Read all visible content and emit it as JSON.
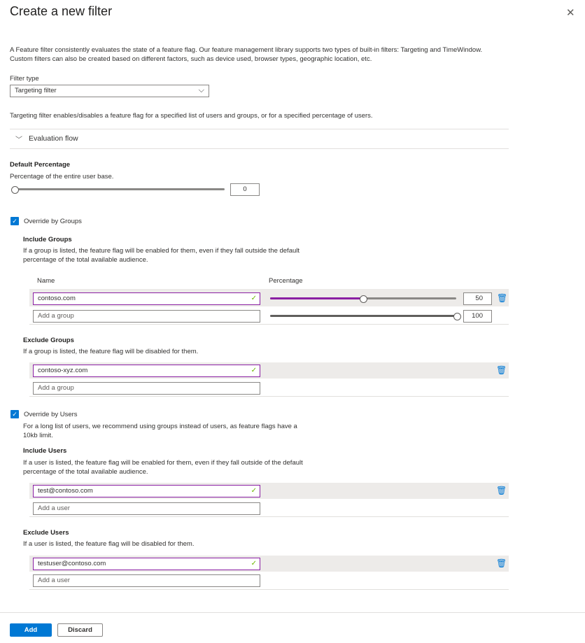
{
  "title": "Create a new filter",
  "description": [
    "A Feature filter consistently evaluates the state of a feature flag. Our feature management library supports two types of built-in filters: Targeting and TimeWindow.",
    "Custom filters can also be created based on different factors, such as device used, browser types, geographic location, etc."
  ],
  "filter_type": {
    "label": "Filter type",
    "value": "Targeting filter"
  },
  "targeting_description": "Targeting filter enables/disables a feature flag for a specified list of users and groups, or for a specified percentage of users.",
  "evaluation_flow": "Evaluation flow",
  "default_percentage": {
    "title": "Default Percentage",
    "subtitle": "Percentage of the entire user base.",
    "value": "0"
  },
  "override_groups": {
    "label": "Override by Groups",
    "checked": true,
    "include": {
      "title": "Include Groups",
      "text": [
        "If a group is listed, the feature flag will be enabled for them, even if they fall outside the default",
        "percentage of the total available audience."
      ],
      "col_name": "Name",
      "col_percentage": "Percentage",
      "rows": [
        {
          "name": "contoso.com",
          "percentage": "50"
        }
      ],
      "add_placeholder": "Add a group",
      "add_percentage": "100"
    },
    "exclude": {
      "title": "Exclude Groups",
      "text": "If a group is listed, the feature flag will be disabled for them.",
      "rows": [
        "contoso-xyz.com"
      ],
      "add_placeholder": "Add a group"
    }
  },
  "override_users": {
    "label": "Override by Users",
    "checked": true,
    "note": [
      "For a long list of users, we recommend using groups instead of users, as feature flags have a",
      "10kb limit."
    ],
    "include": {
      "title": "Include Users",
      "text": [
        "If a user is listed, the feature flag will be enabled for them, even if they fall outside of the default",
        "percentage of the total available audience."
      ],
      "rows": [
        "test@contoso.com"
      ],
      "add_placeholder": "Add a user"
    },
    "exclude": {
      "title": "Exclude Users",
      "text": "If a user is listed, the feature flag will be disabled for them.",
      "rows": [
        "testuser@contoso.com"
      ],
      "add_placeholder": "Add a user"
    }
  },
  "footer": {
    "add": "Add",
    "discard": "Discard"
  },
  "colors": {
    "accent": "#0078d4",
    "slider_fill": "#8a1fa3",
    "valid": "#6bb700"
  }
}
